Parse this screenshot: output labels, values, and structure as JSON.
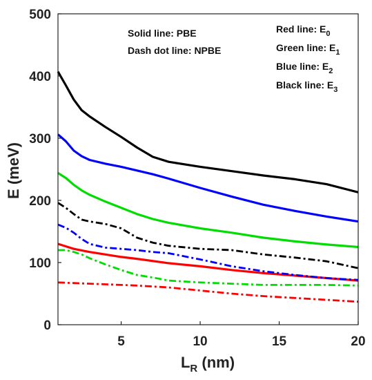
{
  "chart_data": {
    "type": "line",
    "xlabel": "L",
    "xlabel_sub": "R",
    "xlabel_unit": " (nm)",
    "ylabel": "E (meV)",
    "xlim": [
      1,
      20
    ],
    "ylim": [
      0,
      500
    ],
    "xticks": [
      5,
      10,
      15,
      20
    ],
    "yticks": [
      0,
      100,
      200,
      300,
      400,
      500
    ],
    "grid": false,
    "annotations": {
      "method_solid": "Solid line: PBE",
      "method_dashdot": "Dash dot line: NPBE",
      "legend": [
        {
          "text": "Red line: E",
          "sub": "0"
        },
        {
          "text": "Green line: E",
          "sub": "1"
        },
        {
          "text": "Blue line: E",
          "sub": "2"
        },
        {
          "text": "Black line: E",
          "sub": "3"
        }
      ]
    },
    "series": [
      {
        "method": "PBE",
        "level": "E3",
        "color": "#000000",
        "style": "solid",
        "x": [
          1,
          1.5,
          2,
          2.5,
          3,
          4,
          5,
          6,
          7,
          8,
          10,
          12,
          14,
          16,
          18,
          20
        ],
        "y": [
          407,
          385,
          362,
          345,
          335,
          318,
          302,
          285,
          270,
          262,
          254,
          247,
          240,
          234,
          226,
          213
        ]
      },
      {
        "method": "PBE",
        "level": "E2",
        "color": "#0000ff",
        "style": "solid",
        "x": [
          1,
          1.5,
          2,
          2.5,
          3,
          4,
          5,
          6,
          7,
          8,
          10,
          12,
          14,
          16,
          18,
          20
        ],
        "y": [
          306,
          295,
          280,
          271,
          265,
          259,
          254,
          248,
          242,
          235,
          220,
          206,
          193,
          183,
          174,
          166
        ]
      },
      {
        "method": "PBE",
        "level": "E1",
        "color": "#00dd00",
        "style": "solid",
        "x": [
          1,
          1.5,
          2,
          2.5,
          3,
          4,
          5,
          6,
          7,
          8,
          10,
          12,
          14,
          16,
          18,
          20
        ],
        "y": [
          244,
          236,
          225,
          216,
          209,
          198,
          188,
          178,
          170,
          164,
          155,
          148,
          140,
          134,
          129,
          125
        ]
      },
      {
        "method": "PBE",
        "level": "E0",
        "color": "#ff0000",
        "style": "solid",
        "x": [
          1,
          2,
          3,
          4,
          5,
          6,
          8,
          10,
          12,
          14,
          16,
          18,
          20
        ],
        "y": [
          130,
          122,
          117,
          113,
          109,
          106,
          99,
          94,
          88,
          83,
          79,
          75,
          71
        ]
      },
      {
        "method": "NPBE",
        "level": "E3",
        "color": "#000000",
        "style": "dashdot",
        "x": [
          1,
          1.5,
          2,
          2.5,
          3,
          4,
          5,
          6,
          7,
          8,
          10,
          12,
          14,
          16,
          18,
          20
        ],
        "y": [
          196,
          188,
          178,
          169,
          166,
          162,
          155,
          140,
          132,
          127,
          122,
          120,
          113,
          108,
          102,
          91
        ]
      },
      {
        "method": "NPBE",
        "level": "E2",
        "color": "#0000ff",
        "style": "dashdot",
        "x": [
          1,
          1.5,
          2,
          2.5,
          3,
          4,
          5,
          6,
          7,
          8,
          10,
          12,
          14,
          16,
          18,
          20
        ],
        "y": [
          161,
          156,
          148,
          138,
          130,
          124,
          122,
          120,
          117,
          115,
          105,
          94,
          86,
          80,
          75,
          72
        ]
      },
      {
        "method": "NPBE",
        "level": "E1",
        "color": "#00dd00",
        "style": "dashdot",
        "x": [
          1,
          1.5,
          2,
          2.5,
          3,
          4,
          5,
          6,
          7,
          8,
          10,
          12,
          14,
          16,
          18,
          20
        ],
        "y": [
          120,
          120,
          117,
          113,
          107,
          97,
          88,
          80,
          76,
          71,
          68,
          66,
          64,
          64,
          64,
          63
        ]
      },
      {
        "method": "NPBE",
        "level": "E0",
        "color": "#ff0000",
        "style": "dashdot",
        "x": [
          1,
          2,
          3,
          4,
          5,
          6,
          8,
          10,
          12,
          14,
          16,
          18,
          20
        ],
        "y": [
          68,
          67,
          66,
          65,
          64,
          63,
          60,
          55,
          50,
          46,
          43,
          40,
          37
        ]
      }
    ]
  }
}
